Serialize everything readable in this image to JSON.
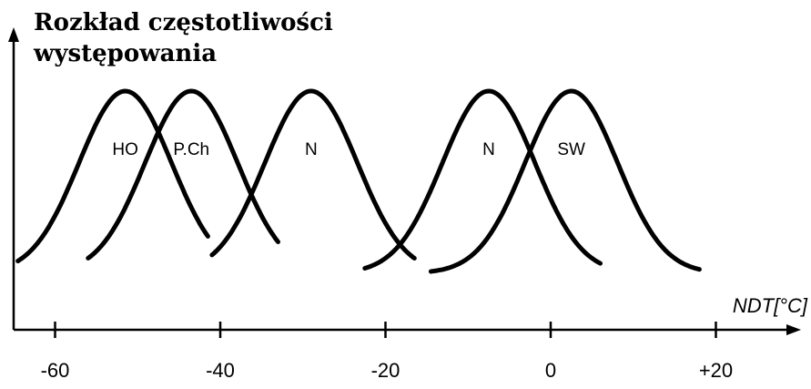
{
  "chart_data": {
    "type": "line",
    "title": "",
    "ylabel_lines": [
      "Rozkład częstotliwości",
      "występowania"
    ],
    "xlabel": "NDT[°C]",
    "x_ticks": [
      -60,
      -40,
      -20,
      0,
      20
    ],
    "x_tick_labels": [
      "-60",
      "-40",
      "-20",
      "0",
      "+20"
    ],
    "xlim": [
      -65,
      24
    ],
    "ylim": [
      0,
      1
    ],
    "curve_shape": "gaussian",
    "series": [
      {
        "name": "HO",
        "peak_x": -51.5,
        "x_from": -64.5,
        "x_to": -41.5
      },
      {
        "name": "P.Ch",
        "peak_x": -43.5,
        "x_from": -56.0,
        "x_to": -33.0
      },
      {
        "name": "N",
        "peak_x": -29.0,
        "x_from": -41.0,
        "x_to": -16.5
      },
      {
        "name": "N",
        "peak_x": -7.5,
        "x_from": -22.5,
        "x_to": 6.0
      },
      {
        "name": "SW",
        "peak_x": 2.5,
        "x_from": -14.5,
        "x_to": 18.0
      }
    ]
  }
}
